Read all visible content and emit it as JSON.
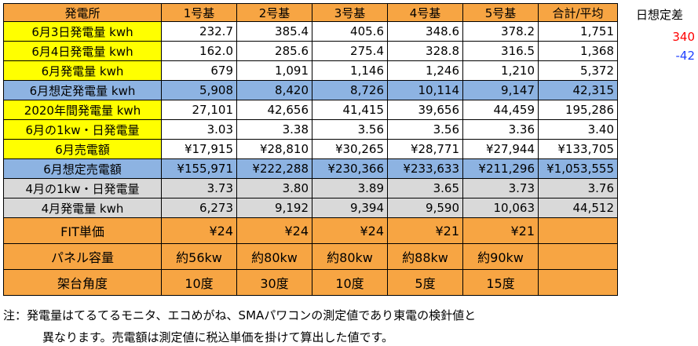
{
  "header": {
    "label": "発電所",
    "cols": [
      "1号基",
      "2号基",
      "3号基",
      "4号基",
      "5号基",
      "合計/平均"
    ]
  },
  "rows": [
    {
      "label": "6月3日発電量 kwh",
      "values": [
        "232.7",
        "385.4",
        "405.6",
        "348.6",
        "378.2",
        "1,751"
      ]
    },
    {
      "label": "6月4日発電量 kwh",
      "values": [
        "162.0",
        "285.6",
        "275.4",
        "328.8",
        "316.5",
        "1,368"
      ]
    },
    {
      "label": "6月発電量 kwh",
      "values": [
        "679",
        "1,091",
        "1,146",
        "1,246",
        "1,210",
        "5,372"
      ]
    },
    {
      "label": "6月想定発電量 kwh",
      "values": [
        "5,908",
        "8,420",
        "8,726",
        "10,114",
        "9,147",
        "42,315"
      ]
    },
    {
      "label": "2020年間発電量 kwh",
      "values": [
        "27,101",
        "42,656",
        "41,415",
        "39,656",
        "44,459",
        "195,286"
      ]
    },
    {
      "label": "6月の1kw・日発電量",
      "values": [
        "3.03",
        "3.38",
        "3.56",
        "3.56",
        "3.36",
        "3.40"
      ]
    },
    {
      "label": "6月売電額",
      "values": [
        "¥17,915",
        "¥28,810",
        "¥30,265",
        "¥28,771",
        "¥27,944",
        "¥133,705"
      ]
    },
    {
      "label": "6月想定売電額",
      "values": [
        "¥155,971",
        "¥222,288",
        "¥230,366",
        "¥233,633",
        "¥211,296",
        "¥1,053,555"
      ]
    },
    {
      "label": "4月の1kw・日発電量",
      "values": [
        "3.73",
        "3.80",
        "3.89",
        "3.65",
        "3.73",
        "3.76"
      ]
    },
    {
      "label": "4月発電量 kwh",
      "values": [
        "6,273",
        "9,192",
        "9,394",
        "9,590",
        "10,063",
        "44,512"
      ]
    },
    {
      "label": "FIT単価",
      "values": [
        "¥24",
        "¥24",
        "¥24",
        "¥21",
        "¥21",
        ""
      ]
    },
    {
      "label": "パネル容量",
      "values": [
        "約56kw",
        "約80kw",
        "約80kw",
        "約88kw",
        "約90kw",
        ""
      ]
    },
    {
      "label": "架台角度",
      "values": [
        "10度",
        "30度",
        "10度",
        "5度",
        "15度",
        ""
      ]
    }
  ],
  "side": {
    "title": "日想定差",
    "value_1": "340",
    "value_2": "-42",
    "color_1": "#ff0000",
    "color_2": "#1f3fff"
  },
  "notes": {
    "line1": "注：発電量はてるてるモニタ、エコめがね、SMAパワコンの測定値であり東電の検針値と",
    "line2": "異なります。売電額は測定値に税込単価を掛けて算出した値です。"
  },
  "colors": {
    "orange": "#f7a543",
    "yellow": "#ffff00",
    "blue": "#8db3e2",
    "gray": "#d9d9d9"
  }
}
